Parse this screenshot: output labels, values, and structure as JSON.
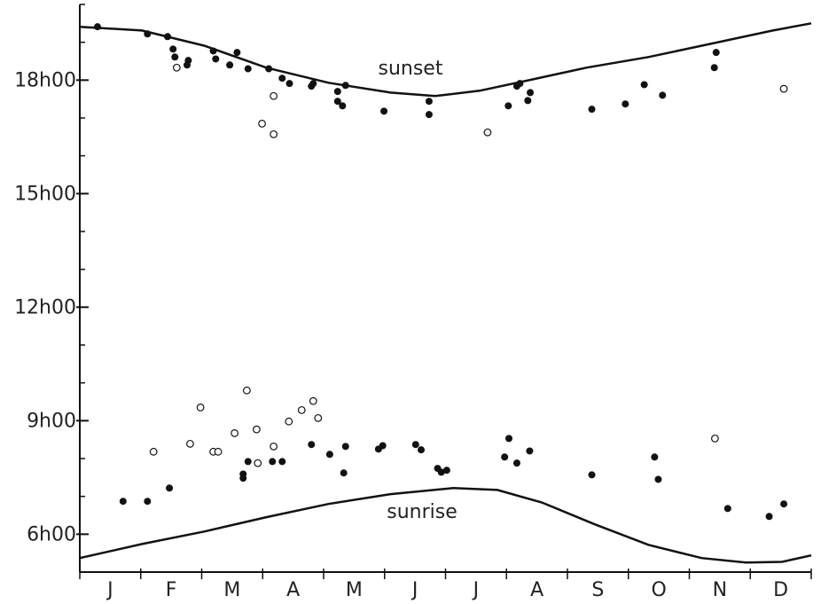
{
  "chart_data": {
    "type": "scatter",
    "xlim": [
      0,
      12
    ],
    "ylim": [
      5,
      20
    ],
    "xticks": [
      0,
      1,
      2,
      3,
      4,
      5,
      6,
      7,
      8,
      9,
      10,
      11,
      12
    ],
    "month_labels": [
      "J",
      "F",
      "M",
      "A",
      "M",
      "J",
      "J",
      "A",
      "S",
      "O",
      "N",
      "D"
    ],
    "yticks": [
      {
        "value": 6,
        "label": "6h00"
      },
      {
        "value": 9,
        "label": "9h00"
      },
      {
        "value": 12,
        "label": "12h00"
      },
      {
        "value": 15,
        "label": "15h00"
      },
      {
        "value": 18,
        "label": "18h00"
      }
    ],
    "yminor": [
      5,
      6,
      7,
      8,
      9,
      10,
      11,
      12,
      13,
      14,
      15,
      16,
      17,
      18,
      19,
      20
    ],
    "color": "#111111",
    "series": [
      {
        "marker": "filled",
        "x": [
          0.29,
          1.11,
          1.44,
          1.53,
          1.56,
          1.78,
          1.76,
          2.19,
          2.23,
          2.46,
          2.58,
          2.76,
          3.1,
          3.32,
          3.44,
          3.83,
          3.8,
          4.23,
          4.36,
          4.23,
          4.31,
          4.99,
          5.73,
          5.73,
          7.03,
          7.17,
          7.22,
          7.35,
          7.39,
          8.4,
          8.95,
          9.26,
          9.56,
          10.41,
          10.44,
          0.71,
          1.11,
          1.47,
          2.68,
          2.68,
          2.76,
          2.92,
          3.16,
          3.32,
          3.8,
          4.1,
          4.36,
          4.33,
          4.9,
          4.97,
          5.51,
          5.6,
          5.87,
          5.93,
          6.02,
          6.97,
          7.04,
          7.17,
          7.38,
          8.4,
          9.43,
          9.49,
          10.63,
          11.31,
          11.55
        ],
        "values": [
          19.41,
          19.22,
          19.15,
          18.82,
          18.61,
          18.52,
          18.4,
          18.77,
          18.56,
          18.4,
          18.73,
          18.3,
          18.3,
          18.05,
          17.91,
          17.91,
          17.84,
          17.7,
          17.86,
          17.44,
          17.32,
          17.18,
          17.44,
          17.09,
          17.32,
          17.84,
          17.91,
          17.46,
          17.67,
          17.23,
          17.37,
          17.88,
          17.6,
          18.33,
          18.73,
          6.87,
          6.87,
          7.22,
          7.59,
          7.48,
          7.92,
          7.88,
          7.92,
          7.92,
          8.37,
          8.11,
          8.32,
          7.62,
          8.25,
          8.34,
          8.37,
          8.23,
          7.74,
          7.64,
          7.69,
          8.04,
          8.53,
          7.88,
          8.2,
          7.57,
          8.04,
          7.45,
          6.68,
          6.47,
          6.8
        ]
      },
      {
        "marker": "open",
        "x": [
          1.59,
          3.18,
          2.99,
          3.18,
          6.69,
          11.55,
          1.21,
          1.81,
          1.98,
          2.19,
          2.27,
          2.54,
          2.74,
          2.9,
          2.92,
          3.18,
          3.43,
          3.64,
          3.83,
          3.91,
          10.42
        ],
        "values": [
          18.33,
          17.58,
          16.85,
          16.57,
          16.62,
          17.77,
          8.18,
          8.39,
          9.35,
          8.18,
          8.18,
          8.67,
          9.8,
          8.77,
          7.88,
          8.32,
          8.98,
          9.28,
          9.52,
          9.07,
          8.53
        ]
      }
    ],
    "curves": [
      {
        "name": "sunset",
        "x": [
          0,
          1.02,
          2.04,
          3.06,
          4.08,
          5.1,
          5.83,
          6.56,
          7.43,
          8.31,
          9.33,
          10.35,
          11.37,
          12
        ],
        "values": [
          19.41,
          19.31,
          18.91,
          18.33,
          17.93,
          17.67,
          17.58,
          17.72,
          18.02,
          18.33,
          18.61,
          18.96,
          19.31,
          19.5
        ]
      },
      {
        "name": "sunrise",
        "x": [
          0,
          1.02,
          2.04,
          3.06,
          4.08,
          5.1,
          6.12,
          6.85,
          7.58,
          8.45,
          9.33,
          10.2,
          10.93,
          11.52,
          12
        ],
        "values": [
          5.37,
          5.74,
          6.07,
          6.45,
          6.8,
          7.06,
          7.22,
          7.17,
          6.84,
          6.26,
          5.72,
          5.37,
          5.25,
          5.27,
          5.44
        ]
      }
    ]
  }
}
